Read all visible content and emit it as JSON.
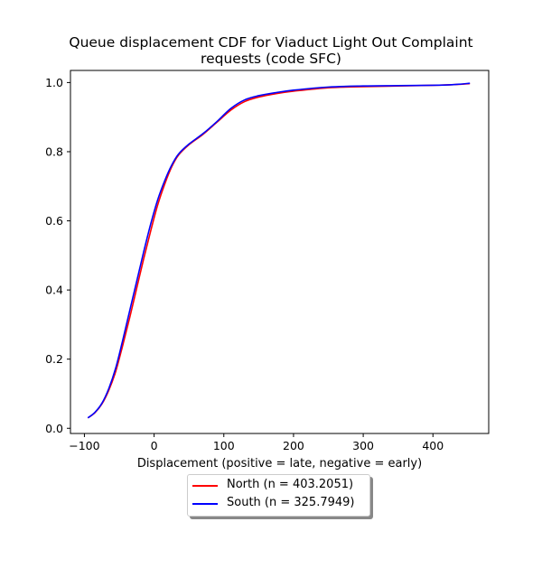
{
  "chart_data": {
    "type": "line",
    "title_line1": "Queue displacement CDF for Viaduct Light Out Complaint",
    "title_line2": "requests (code SFC)",
    "xlabel": "Displacement (positive = late, negative = early)",
    "ylabel": "",
    "xlim": [
      -120,
      480
    ],
    "ylim": [
      -0.015,
      1.035
    ],
    "xticks": [
      -100,
      0,
      100,
      200,
      300,
      400
    ],
    "yticks": [
      0.0,
      0.2,
      0.4,
      0.6,
      0.8,
      1.0
    ],
    "xtick_labels": [
      "−100",
      "0",
      "100",
      "200",
      "300",
      "400"
    ],
    "ytick_labels": [
      "0.0",
      "0.2",
      "0.4",
      "0.6",
      "0.8",
      "1.0"
    ],
    "grid": false,
    "legend_position": "below plot, centered",
    "series": [
      {
        "name": "North (n = 403.2051)",
        "color": "#ff0000",
        "x": [
          -95,
          -85,
          -75,
          -65,
          -55,
          -45,
          -35,
          -25,
          -15,
          -5,
          5,
          15,
          25,
          35,
          50,
          70,
          90,
          110,
          130,
          150,
          175,
          200,
          250,
          300,
          350,
          400,
          430,
          453
        ],
        "y": [
          0.03,
          0.045,
          0.07,
          0.11,
          0.165,
          0.24,
          0.32,
          0.405,
          0.49,
          0.57,
          0.645,
          0.705,
          0.755,
          0.79,
          0.82,
          0.85,
          0.885,
          0.92,
          0.945,
          0.958,
          0.968,
          0.975,
          0.985,
          0.988,
          0.99,
          0.992,
          0.994,
          0.997
        ]
      },
      {
        "name": "South (n = 325.7949)",
        "color": "#0000ff",
        "x": [
          -95,
          -85,
          -75,
          -65,
          -55,
          -45,
          -35,
          -25,
          -15,
          -5,
          5,
          15,
          25,
          35,
          50,
          70,
          90,
          110,
          130,
          150,
          175,
          200,
          250,
          300,
          350,
          400,
          430,
          453
        ],
        "y": [
          0.03,
          0.046,
          0.072,
          0.115,
          0.175,
          0.255,
          0.34,
          0.425,
          0.51,
          0.59,
          0.66,
          0.715,
          0.76,
          0.793,
          0.822,
          0.852,
          0.887,
          0.925,
          0.95,
          0.962,
          0.971,
          0.978,
          0.987,
          0.99,
          0.991,
          0.992,
          0.994,
          0.998
        ]
      }
    ]
  }
}
